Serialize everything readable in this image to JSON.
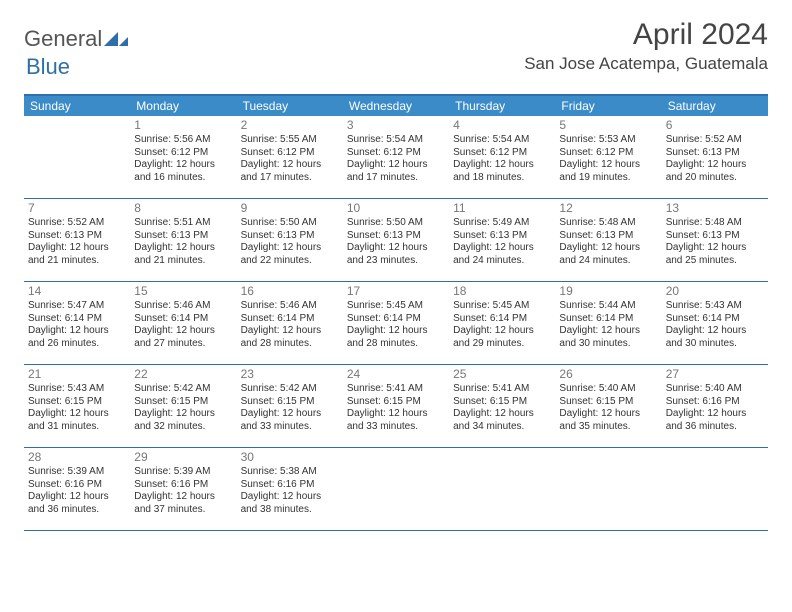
{
  "logo": {
    "text1": "General",
    "text2": "Blue"
  },
  "title": "April 2024",
  "location": "San Jose Acatempa, Guatemala",
  "colors": {
    "header_bg": "#3b8bc9",
    "header_text": "#ffffff",
    "border": "#2f6fa8",
    "daynum": "#777777",
    "body_text": "#333333",
    "logo_gray": "#555555",
    "logo_blue": "#2f6fa8"
  },
  "day_headers": [
    "Sunday",
    "Monday",
    "Tuesday",
    "Wednesday",
    "Thursday",
    "Friday",
    "Saturday"
  ],
  "weeks": [
    [
      null,
      {
        "n": "1",
        "sr": "5:56 AM",
        "ss": "6:12 PM",
        "dl": "12 hours and 16 minutes."
      },
      {
        "n": "2",
        "sr": "5:55 AM",
        "ss": "6:12 PM",
        "dl": "12 hours and 17 minutes."
      },
      {
        "n": "3",
        "sr": "5:54 AM",
        "ss": "6:12 PM",
        "dl": "12 hours and 17 minutes."
      },
      {
        "n": "4",
        "sr": "5:54 AM",
        "ss": "6:12 PM",
        "dl": "12 hours and 18 minutes."
      },
      {
        "n": "5",
        "sr": "5:53 AM",
        "ss": "6:12 PM",
        "dl": "12 hours and 19 minutes."
      },
      {
        "n": "6",
        "sr": "5:52 AM",
        "ss": "6:13 PM",
        "dl": "12 hours and 20 minutes."
      }
    ],
    [
      {
        "n": "7",
        "sr": "5:52 AM",
        "ss": "6:13 PM",
        "dl": "12 hours and 21 minutes."
      },
      {
        "n": "8",
        "sr": "5:51 AM",
        "ss": "6:13 PM",
        "dl": "12 hours and 21 minutes."
      },
      {
        "n": "9",
        "sr": "5:50 AM",
        "ss": "6:13 PM",
        "dl": "12 hours and 22 minutes."
      },
      {
        "n": "10",
        "sr": "5:50 AM",
        "ss": "6:13 PM",
        "dl": "12 hours and 23 minutes."
      },
      {
        "n": "11",
        "sr": "5:49 AM",
        "ss": "6:13 PM",
        "dl": "12 hours and 24 minutes."
      },
      {
        "n": "12",
        "sr": "5:48 AM",
        "ss": "6:13 PM",
        "dl": "12 hours and 24 minutes."
      },
      {
        "n": "13",
        "sr": "5:48 AM",
        "ss": "6:13 PM",
        "dl": "12 hours and 25 minutes."
      }
    ],
    [
      {
        "n": "14",
        "sr": "5:47 AM",
        "ss": "6:14 PM",
        "dl": "12 hours and 26 minutes."
      },
      {
        "n": "15",
        "sr": "5:46 AM",
        "ss": "6:14 PM",
        "dl": "12 hours and 27 minutes."
      },
      {
        "n": "16",
        "sr": "5:46 AM",
        "ss": "6:14 PM",
        "dl": "12 hours and 28 minutes."
      },
      {
        "n": "17",
        "sr": "5:45 AM",
        "ss": "6:14 PM",
        "dl": "12 hours and 28 minutes."
      },
      {
        "n": "18",
        "sr": "5:45 AM",
        "ss": "6:14 PM",
        "dl": "12 hours and 29 minutes."
      },
      {
        "n": "19",
        "sr": "5:44 AM",
        "ss": "6:14 PM",
        "dl": "12 hours and 30 minutes."
      },
      {
        "n": "20",
        "sr": "5:43 AM",
        "ss": "6:14 PM",
        "dl": "12 hours and 30 minutes."
      }
    ],
    [
      {
        "n": "21",
        "sr": "5:43 AM",
        "ss": "6:15 PM",
        "dl": "12 hours and 31 minutes."
      },
      {
        "n": "22",
        "sr": "5:42 AM",
        "ss": "6:15 PM",
        "dl": "12 hours and 32 minutes."
      },
      {
        "n": "23",
        "sr": "5:42 AM",
        "ss": "6:15 PM",
        "dl": "12 hours and 33 minutes."
      },
      {
        "n": "24",
        "sr": "5:41 AM",
        "ss": "6:15 PM",
        "dl": "12 hours and 33 minutes."
      },
      {
        "n": "25",
        "sr": "5:41 AM",
        "ss": "6:15 PM",
        "dl": "12 hours and 34 minutes."
      },
      {
        "n": "26",
        "sr": "5:40 AM",
        "ss": "6:15 PM",
        "dl": "12 hours and 35 minutes."
      },
      {
        "n": "27",
        "sr": "5:40 AM",
        "ss": "6:16 PM",
        "dl": "12 hours and 36 minutes."
      }
    ],
    [
      {
        "n": "28",
        "sr": "5:39 AM",
        "ss": "6:16 PM",
        "dl": "12 hours and 36 minutes."
      },
      {
        "n": "29",
        "sr": "5:39 AM",
        "ss": "6:16 PM",
        "dl": "12 hours and 37 minutes."
      },
      {
        "n": "30",
        "sr": "5:38 AM",
        "ss": "6:16 PM",
        "dl": "12 hours and 38 minutes."
      },
      null,
      null,
      null,
      null
    ]
  ],
  "labels": {
    "sunrise": "Sunrise:",
    "sunset": "Sunset:",
    "daylight": "Daylight:"
  }
}
